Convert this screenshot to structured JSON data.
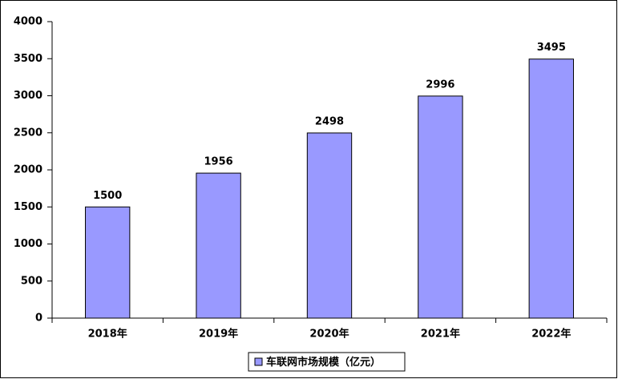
{
  "chart_data": {
    "type": "bar",
    "categories": [
      "2018年",
      "2019年",
      "2020年",
      "2021年",
      "2022年"
    ],
    "series": [
      {
        "name": "车联网市场规模（亿元）",
        "color": "#9999ff",
        "values": [
          1500,
          1956,
          2498,
          2996,
          3495
        ]
      }
    ],
    "ylim": [
      0,
      4000
    ],
    "yticks": [
      0,
      500,
      1000,
      1500,
      2000,
      2500,
      3000,
      3500,
      4000
    ],
    "grid": false,
    "legend": "bottom"
  }
}
